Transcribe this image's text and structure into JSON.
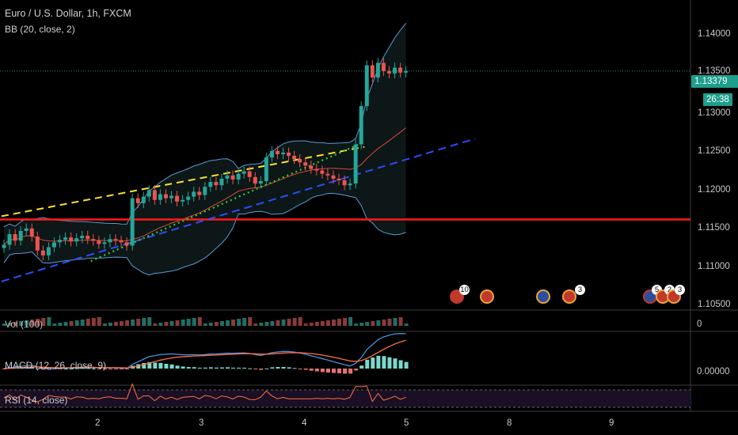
{
  "header": {
    "symbol_title": "Euro / U.S. Dollar, 1h, FXCM",
    "bb_label": "BB (20, close, 2)"
  },
  "price_axis": {
    "ticks": [
      "1.14000",
      "1.13500",
      "1.13000",
      "1.12500",
      "1.12000",
      "1.11500",
      "1.11000",
      "1.10500"
    ],
    "current_price": "1.13379",
    "countdown": "26:38"
  },
  "volume_pane": {
    "label": "Vol (100)",
    "axis_label": "0"
  },
  "macd_pane": {
    "label": "MACD (12, 26, close, 9)",
    "axis_label": "0.00000"
  },
  "rsi_pane": {
    "label": "RSI (14, close)"
  },
  "time_axis": {
    "ticks": [
      "2",
      "3",
      "4",
      "5",
      "8",
      "9"
    ]
  },
  "events": [
    {
      "icon": "us-flag-icon",
      "count": "10"
    },
    {
      "icon": "us-flag-icon",
      "count": ""
    },
    {
      "icon": "eu-flag-icon",
      "count": ""
    },
    {
      "icon": "us-flag-icon",
      "count": "3"
    },
    {
      "icon": "eu-flag-icon",
      "count": "5"
    },
    {
      "icon": "us-flag-icon",
      "count": "2"
    },
    {
      "icon": "us-flag-icon",
      "count": "3"
    }
  ],
  "colors": {
    "up": "#26a69a",
    "down": "#ef5350",
    "bb_band": "#5a9bd5",
    "bb_basis": "#d9483b",
    "support_line": "#ff1a1a",
    "upper_trend": "#ffe033",
    "lower_trend": "#2e4cff",
    "dotted_trend": "#33cc33",
    "macd": "#4a90d9",
    "signal": "#ff7043",
    "rsi": "#ff7043",
    "current_price": "#1e9e8c"
  },
  "chart_data": {
    "type": "line",
    "title": "Euro / U.S. Dollar, 1h, FXCM",
    "y_range": [
      1.1045,
      1.1425
    ],
    "x_ticks": [
      "2",
      "3",
      "4",
      "5",
      "8",
      "9"
    ],
    "current_price": 1.13379,
    "support_level": 1.1156,
    "trend_lines": [
      {
        "name": "upper",
        "start": [
          0,
          1.116
        ],
        "end": [
          65,
          1.1245
        ]
      },
      {
        "name": "lower",
        "start": [
          0,
          1.108
        ],
        "end": [
          100,
          1.1255
        ]
      },
      {
        "name": "dotted",
        "start": [
          16,
          1.1105
        ],
        "end": [
          64,
          1.1248
        ]
      }
    ],
    "candles_close": [
      1.1125,
      1.1138,
      1.113,
      1.1142,
      1.1145,
      1.1135,
      1.1118,
      1.1112,
      1.1122,
      1.1128,
      1.1131,
      1.1134,
      1.1129,
      1.1133,
      1.1136,
      1.1132,
      1.113,
      1.1126,
      1.1128,
      1.1132,
      1.113,
      1.1128,
      1.1124,
      1.1182,
      1.1176,
      1.1184,
      1.1192,
      1.118,
      1.1187,
      1.1182,
      1.1185,
      1.1178,
      1.118,
      1.1184,
      1.119,
      1.1186,
      1.1196,
      1.1202,
      1.1198,
      1.1206,
      1.121,
      1.1205,
      1.1212,
      1.1215,
      1.1208,
      1.12,
      1.1203,
      1.1232,
      1.124,
      1.1236,
      1.1238,
      1.1234,
      1.123,
      1.1226,
      1.1222,
      1.1218,
      1.1216,
      1.1212,
      1.121,
      1.1206,
      1.1204,
      1.1198,
      1.12,
      1.1248,
      1.1295,
      1.1345,
      1.133,
      1.1348,
      1.1338,
      1.1335,
      1.1342,
      1.1336,
      1.1338
    ],
    "series": [
      {
        "name": "BB (20, close, 2)",
        "values": []
      }
    ]
  }
}
